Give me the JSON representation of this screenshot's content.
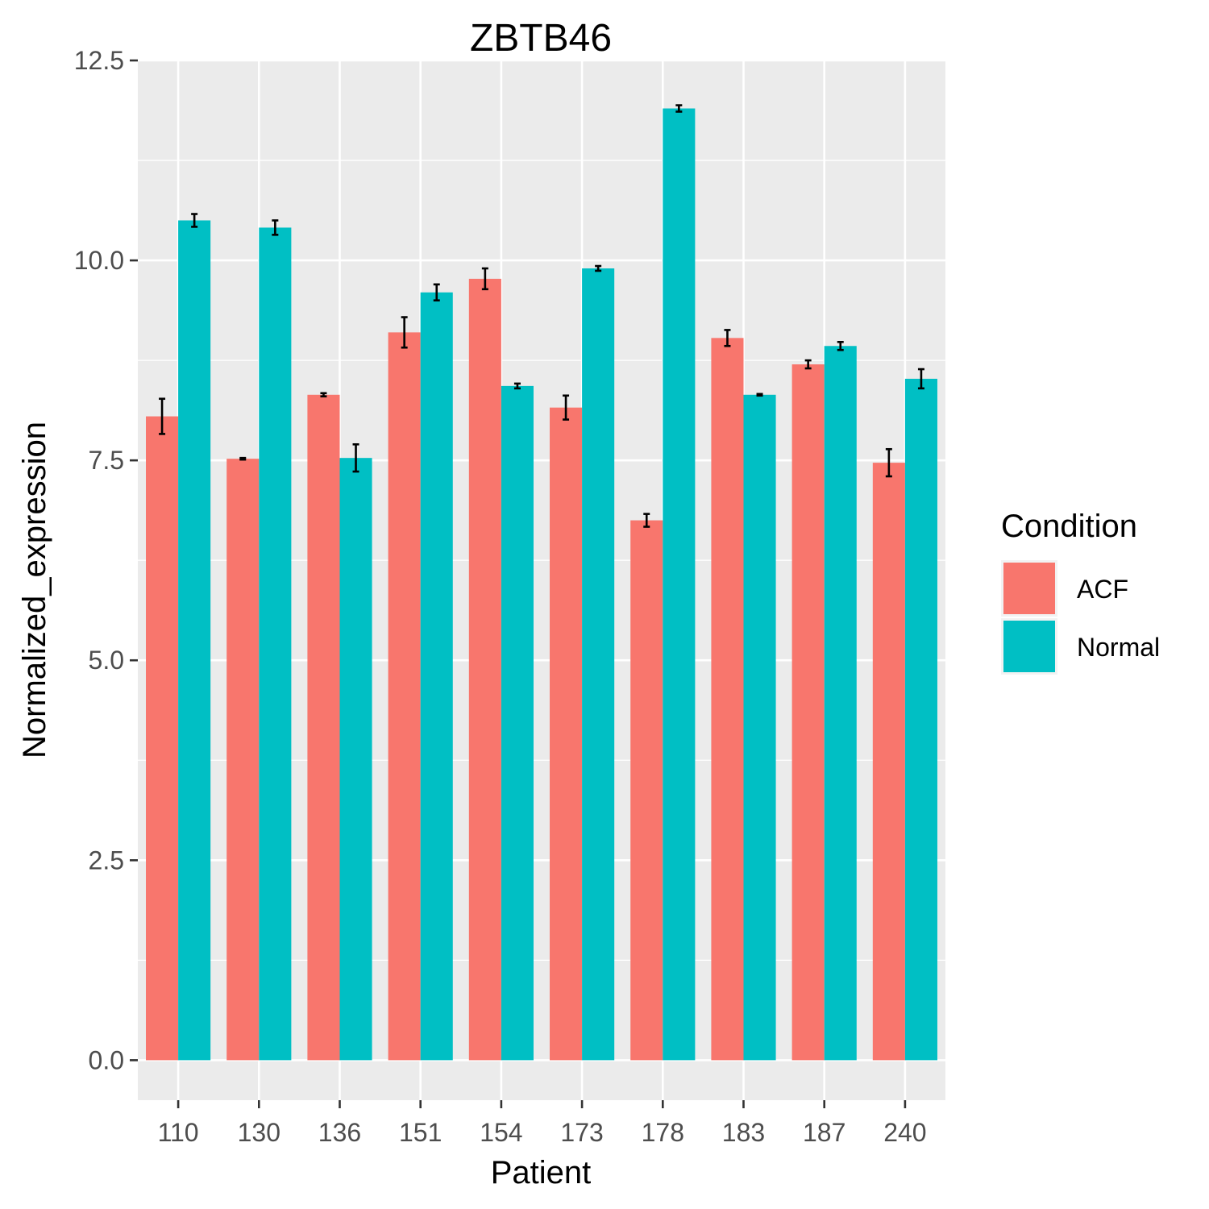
{
  "chart_data": {
    "type": "bar",
    "title": "ZBTB46",
    "xlabel": "Patient",
    "ylabel": "Normalized_expression",
    "categories": [
      "110",
      "130",
      "136",
      "151",
      "154",
      "173",
      "178",
      "183",
      "187",
      "240"
    ],
    "series": [
      {
        "name": "ACF",
        "color": "#F8766D",
        "values": [
          8.05,
          7.52,
          8.32,
          9.1,
          9.77,
          8.16,
          6.75,
          9.03,
          8.7,
          7.47
        ],
        "errors": [
          0.22,
          0.01,
          0.02,
          0.19,
          0.13,
          0.15,
          0.08,
          0.1,
          0.05,
          0.17
        ]
      },
      {
        "name": "Normal",
        "color": "#00BFC4",
        "values": [
          10.5,
          10.41,
          7.53,
          9.6,
          8.43,
          9.9,
          11.9,
          8.32,
          8.93,
          8.52
        ],
        "errors": [
          0.08,
          0.09,
          0.17,
          0.1,
          0.03,
          0.03,
          0.04,
          0.01,
          0.05,
          0.12
        ]
      }
    ],
    "ylim": [
      -0.5,
      12.5
    ],
    "yticks": [
      "0.0",
      "2.5",
      "5.0",
      "7.5",
      "10.0",
      "12.5"
    ],
    "grid": true,
    "legend": {
      "title": "Condition",
      "position": "right"
    }
  }
}
